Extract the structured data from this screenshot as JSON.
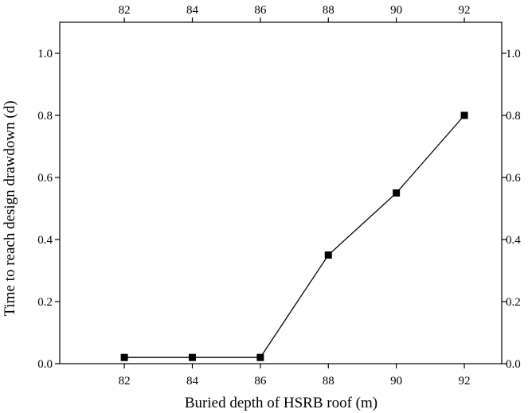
{
  "chart_data": {
    "type": "line",
    "title": "",
    "xlabel": "Buried depth of HSRB roof (m)",
    "ylabel": "Time to reach design drawdown (d)",
    "x": [
      82,
      84,
      86,
      88,
      90,
      92
    ],
    "series": [
      {
        "values": [
          0.02,
          0.02,
          0.02,
          0.35,
          0.55,
          0.8
        ]
      }
    ],
    "xlim": [
      80.1,
      93.1
    ],
    "ylim": [
      0.0,
      1.1
    ],
    "x_ticks": [
      82,
      84,
      86,
      88,
      90,
      92
    ],
    "x_tick_labels": [
      "82",
      "84",
      "86",
      "88",
      "90",
      "92"
    ],
    "y_ticks": [
      0.0,
      0.2,
      0.4,
      0.6,
      0.8,
      1.0
    ],
    "y_tick_labels": [
      "0.0",
      "0.2",
      "0.4",
      "0.6",
      "0.8",
      "1.0"
    ],
    "y_right_tick_labels": [
      "0.0",
      "0.2",
      "0.4",
      "0.6",
      "0.8",
      "1.0"
    ],
    "top_axis": true,
    "right_axis": true,
    "marker": "square",
    "line_color": "#000000",
    "marker_color": "#000000",
    "grid": false,
    "legend": "none"
  }
}
